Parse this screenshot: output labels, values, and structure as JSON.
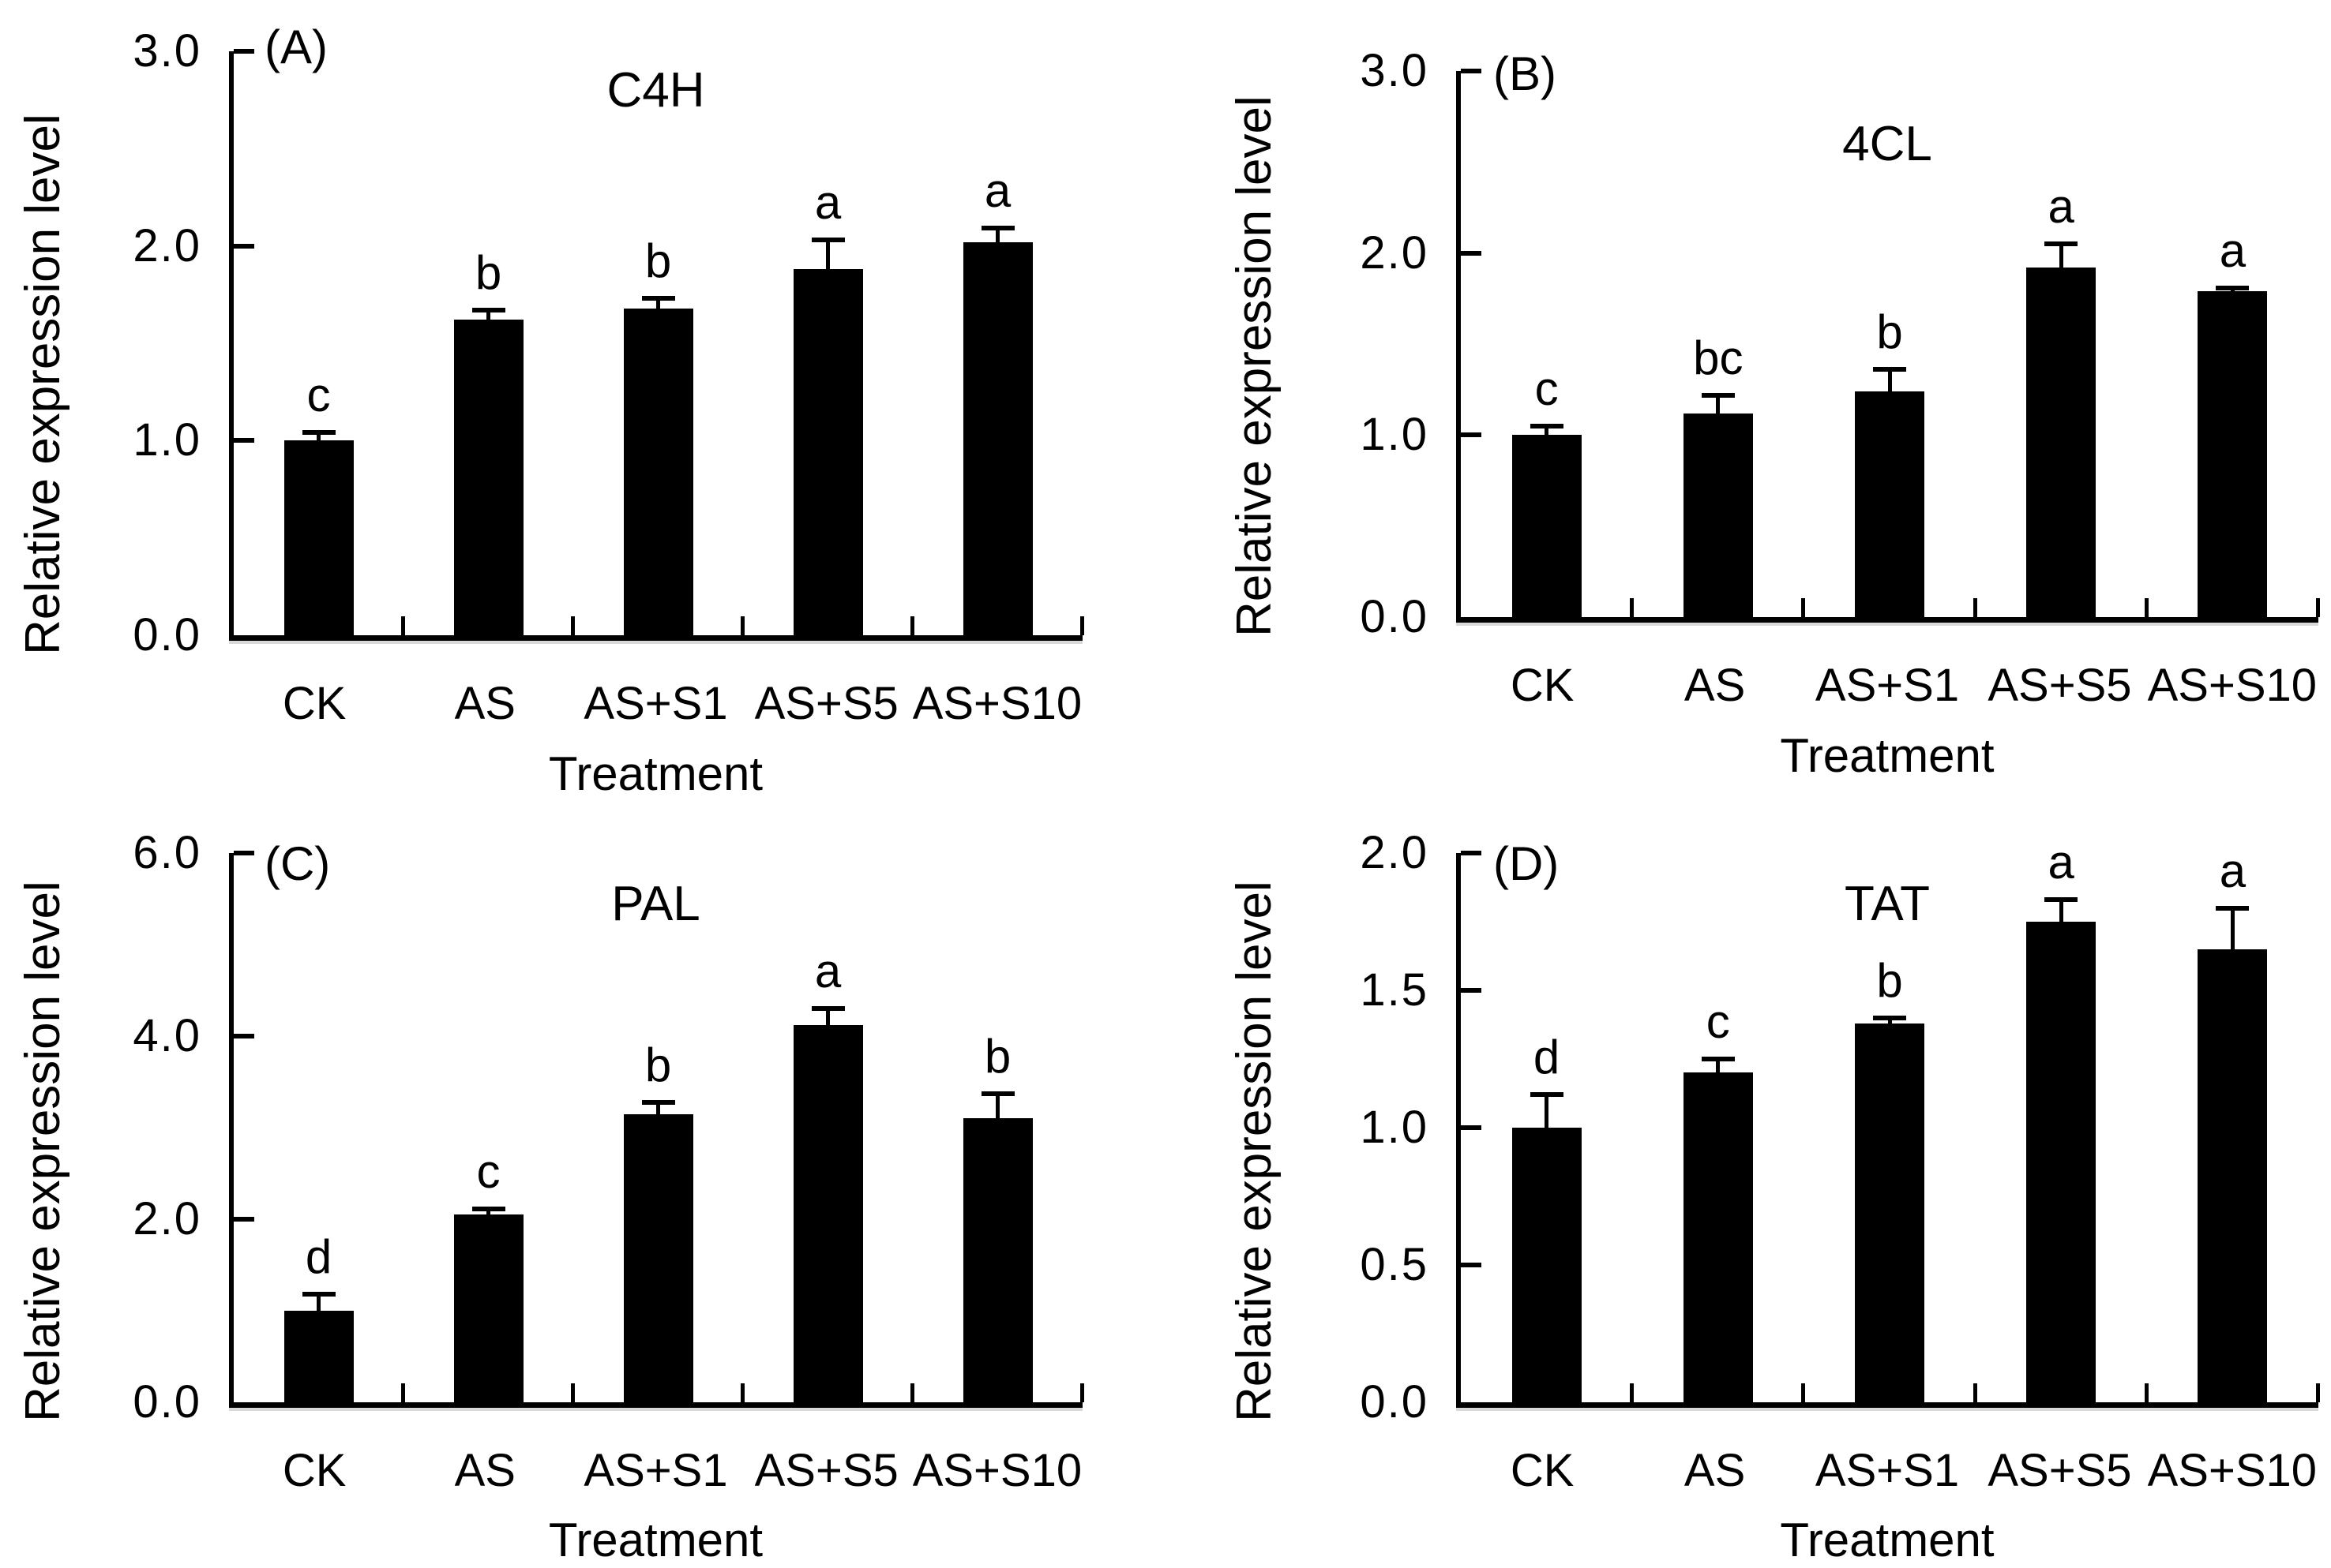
{
  "figure": {
    "background_color": "#ffffff",
    "bar_color": "#000000",
    "axis_color": "#000000",
    "text_color": "#000000",
    "layout": "2x2 grid of bar charts"
  },
  "chart_data": [
    {
      "type": "bar",
      "panel_letter": "(A)",
      "title": "C4H",
      "xlabel": "Treatment",
      "ylabel": "Relative expression level",
      "categories": [
        "CK",
        "AS",
        "AS+S1",
        "AS+S5",
        "AS+S10"
      ],
      "values": [
        1.0,
        1.62,
        1.68,
        1.88,
        2.02
      ],
      "errors": [
        0.04,
        0.05,
        0.05,
        0.15,
        0.07
      ],
      "sig_letters": [
        "c",
        "b",
        "b",
        "a",
        "a"
      ],
      "ylim": [
        0,
        3.0
      ],
      "yticks": [
        0,
        1.0,
        2.0,
        3.0
      ],
      "ytick_labels": [
        "0.0",
        "1.0",
        "2.0",
        "3.0"
      ],
      "error_bars": "upper",
      "grid": false,
      "legend": false
    },
    {
      "type": "bar",
      "panel_letter": "(B)",
      "title": "4CL",
      "xlabel": "Treatment",
      "ylabel": "Relative expression level",
      "categories": [
        "CK",
        "AS",
        "AS+S1",
        "AS+S5",
        "AS+S10"
      ],
      "values": [
        1.0,
        1.12,
        1.24,
        1.92,
        1.79
      ],
      "errors": [
        0.05,
        0.1,
        0.12,
        0.13,
        0.02
      ],
      "sig_letters": [
        "c",
        "bc",
        "b",
        "a",
        "a"
      ],
      "ylim": [
        0,
        3.0
      ],
      "yticks": [
        0,
        1.0,
        2.0,
        3.0
      ],
      "ytick_labels": [
        "0.0",
        "1.0",
        "2.0",
        "3.0"
      ],
      "error_bars": "upper",
      "grid": false,
      "legend": false
    },
    {
      "type": "bar",
      "panel_letter": "(C)",
      "title": "PAL",
      "xlabel": "Treatment",
      "ylabel": "Relative expression level",
      "categories": [
        "CK",
        "AS",
        "AS+S1",
        "AS+S5",
        "AS+S10"
      ],
      "values": [
        1.0,
        2.05,
        3.15,
        4.12,
        3.1
      ],
      "errors": [
        0.18,
        0.06,
        0.13,
        0.18,
        0.27
      ],
      "sig_letters": [
        "d",
        "c",
        "b",
        "a",
        "b"
      ],
      "ylim": [
        0,
        6.0
      ],
      "yticks": [
        0,
        2.0,
        4.0,
        6.0
      ],
      "ytick_labels": [
        "0.0",
        "2.0",
        "4.0",
        "6.0"
      ],
      "error_bars": "upper",
      "grid": false,
      "legend": false
    },
    {
      "type": "bar",
      "panel_letter": "(D)",
      "title": "TAT",
      "xlabel": "Treatment",
      "ylabel": "Relative expression level",
      "categories": [
        "CK",
        "AS",
        "AS+S1",
        "AS+S5",
        "AS+S10"
      ],
      "values": [
        1.0,
        1.2,
        1.38,
        1.75,
        1.65
      ],
      "errors": [
        0.12,
        0.05,
        0.02,
        0.08,
        0.15
      ],
      "sig_letters": [
        "d",
        "c",
        "b",
        "a",
        "a"
      ],
      "ylim": [
        0,
        2.0
      ],
      "yticks": [
        0,
        0.5,
        1.0,
        1.5,
        2.0
      ],
      "ytick_labels": [
        "0.0",
        "0.5",
        "1.0",
        "1.5",
        "2.0"
      ],
      "error_bars": "upper",
      "grid": false,
      "legend": false
    }
  ]
}
